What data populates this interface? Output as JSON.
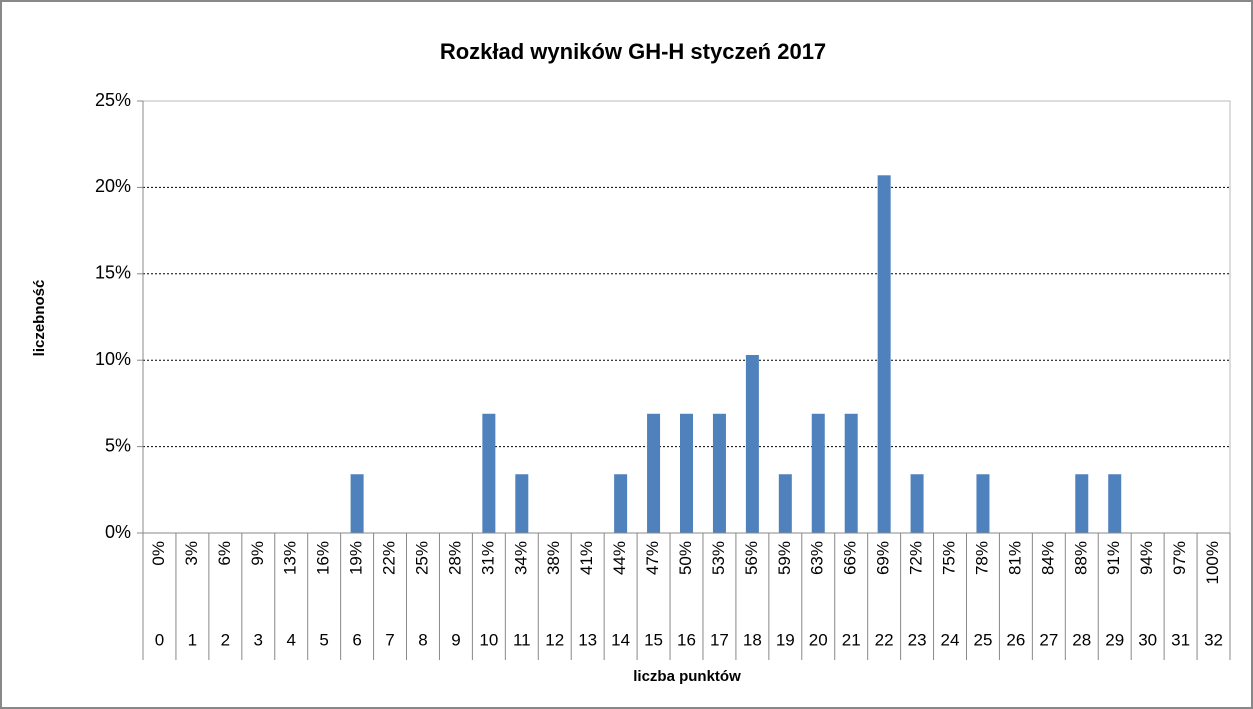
{
  "chart_data": {
    "type": "bar",
    "title": "Rozkład wyników GH-H styczeń 2017",
    "x_label": "liczba punktów",
    "y_label": "liczebność",
    "categories": [
      "0",
      "1",
      "2",
      "3",
      "4",
      "5",
      "6",
      "7",
      "8",
      "9",
      "10",
      "11",
      "12",
      "13",
      "14",
      "15",
      "16",
      "17",
      "18",
      "19",
      "20",
      "21",
      "22",
      "23",
      "24",
      "25",
      "26",
      "27",
      "28",
      "29",
      "30",
      "31",
      "32"
    ],
    "category_labels": [
      "0%",
      "3%",
      "6%",
      "9%",
      "13%",
      "16%",
      "19%",
      "22%",
      "25%",
      "28%",
      "31%",
      "34%",
      "38%",
      "41%",
      "44%",
      "47%",
      "50%",
      "53%",
      "56%",
      "59%",
      "63%",
      "66%",
      "69%",
      "72%",
      "75%",
      "78%",
      "81%",
      "84%",
      "88%",
      "91%",
      "94%",
      "97%",
      "100%"
    ],
    "values": [
      0,
      0,
      0,
      0,
      0,
      0,
      3.4,
      0,
      0,
      0,
      6.9,
      3.4,
      0,
      0,
      3.4,
      6.9,
      6.9,
      6.9,
      10.3,
      3.4,
      6.9,
      6.9,
      20.7,
      3.4,
      0,
      3.4,
      0,
      0,
      3.4,
      3.4,
      0,
      0,
      0
    ],
    "color": "#4f81bd",
    "ylim": [
      0,
      25
    ],
    "yticks": [
      {
        "value": 0,
        "label": "0%"
      },
      {
        "value": 5,
        "label": "5%"
      },
      {
        "value": 10,
        "label": "10%"
      },
      {
        "value": 15,
        "label": "15%"
      },
      {
        "value": 20,
        "label": "20%"
      },
      {
        "value": 25,
        "label": "25%"
      }
    ],
    "grid": true
  }
}
